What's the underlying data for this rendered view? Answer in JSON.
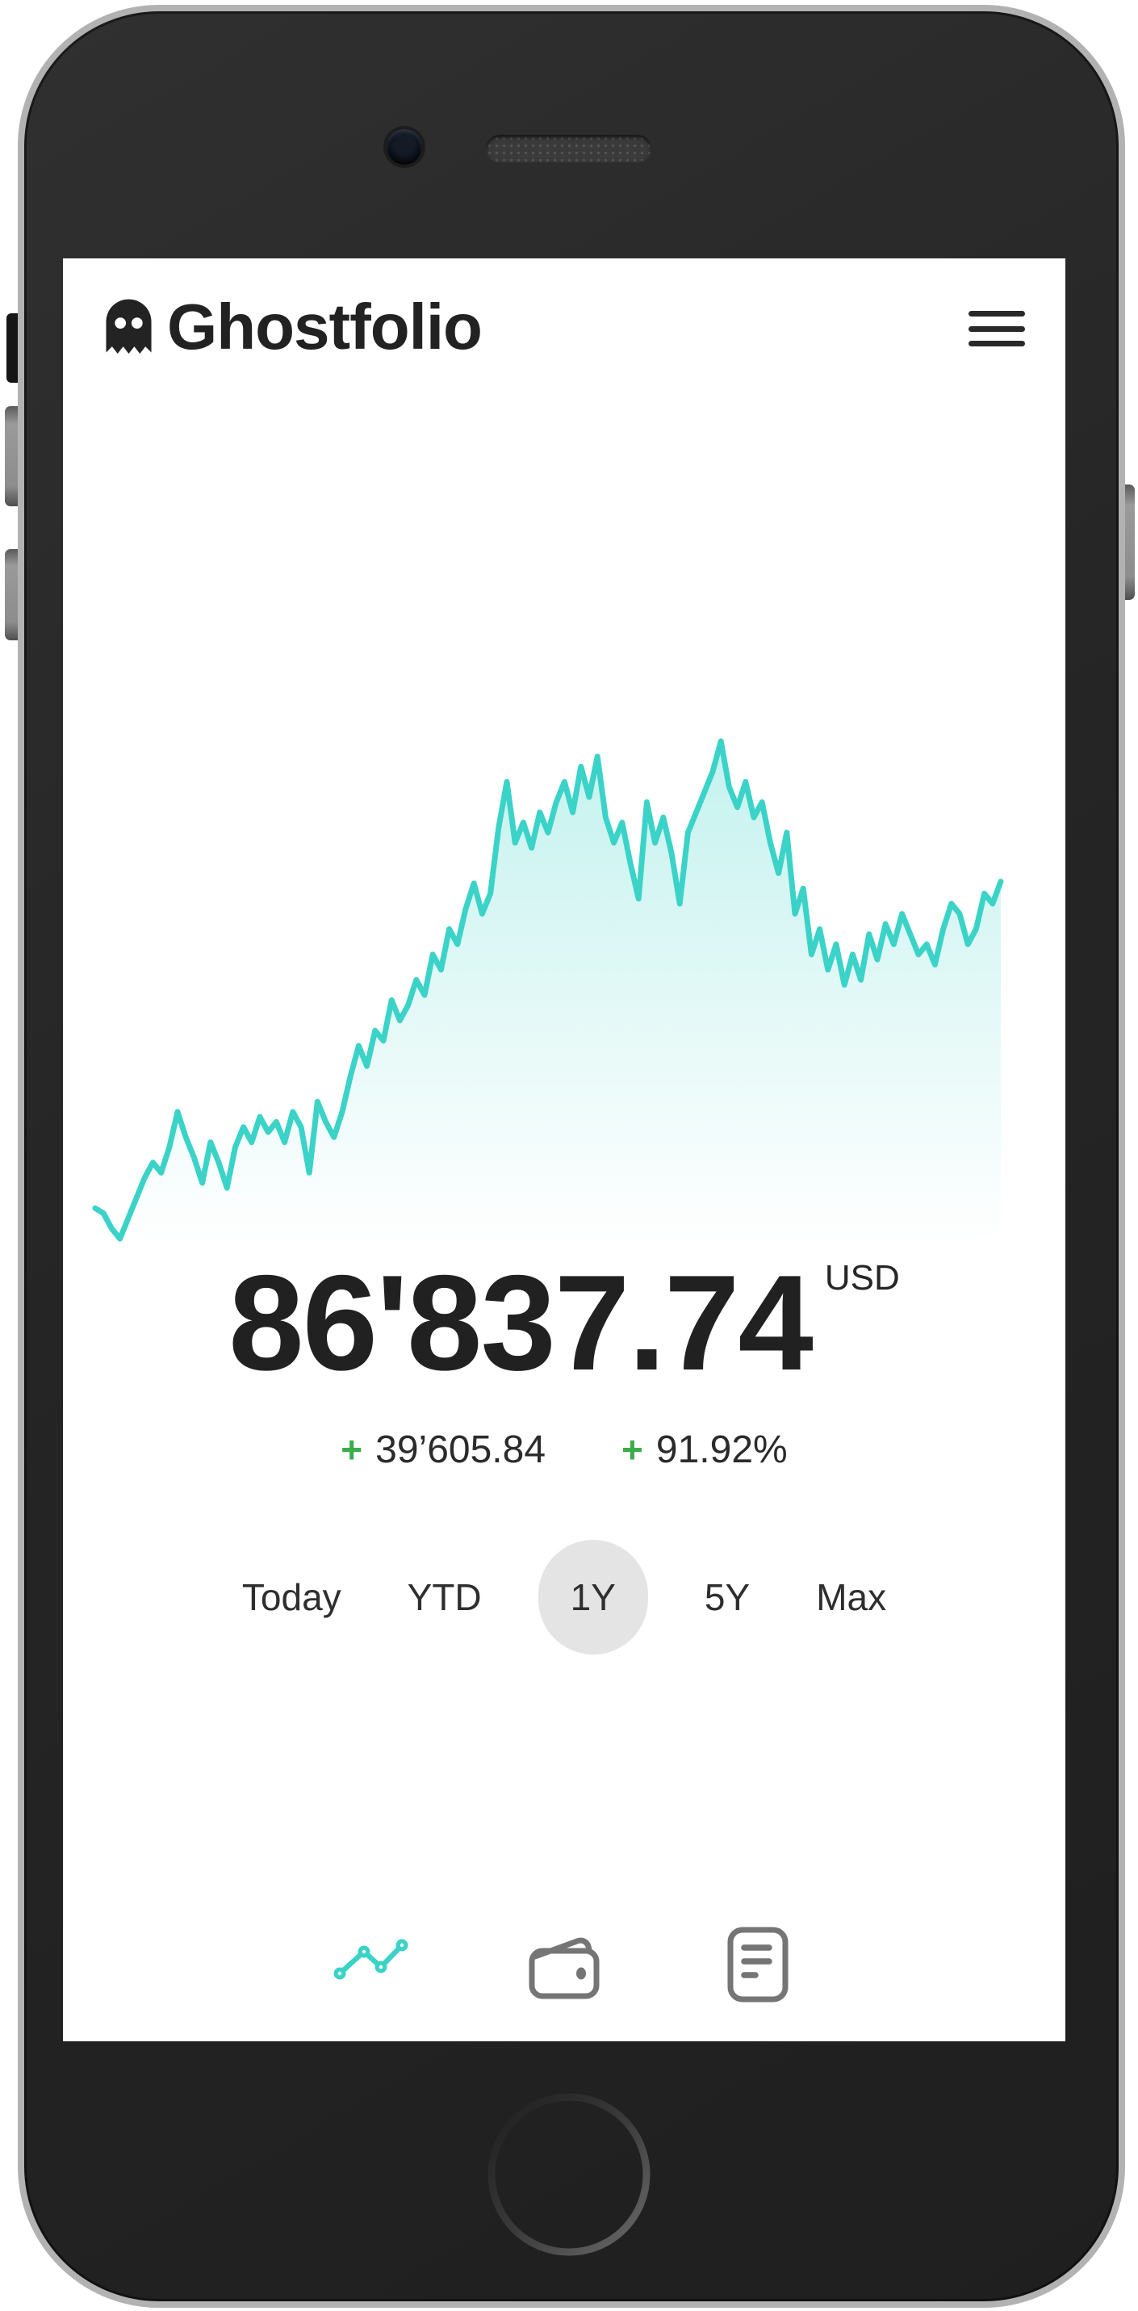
{
  "app": {
    "title": "Ghostfolio"
  },
  "header": {
    "logo_icon": "ghost-icon",
    "menu_icon": "hamburger-icon"
  },
  "portfolio": {
    "value": "86'837.74",
    "currency": "USD",
    "change": {
      "sign": "+",
      "absolute": "39’605.84",
      "percent": "91.92%"
    }
  },
  "ranges": {
    "options": [
      "Today",
      "YTD",
      "1Y",
      "5Y",
      "Max"
    ],
    "selected": "1Y"
  },
  "tabbar": {
    "items": [
      {
        "name": "performance",
        "icon": "line-chart-icon",
        "active": true
      },
      {
        "name": "wallet",
        "icon": "wallet-icon",
        "active": false
      },
      {
        "name": "report",
        "icon": "document-icon",
        "active": false
      }
    ]
  },
  "colors": {
    "accent": "#3BD3C8",
    "positive": "#3AAD4A",
    "text": "#232323",
    "muted_icon": "#757575",
    "pill_bg": "#E4E4E4",
    "bezel": "#262626",
    "rim": "#B2B2B2"
  },
  "chart_data": {
    "type": "area",
    "title": "",
    "period": "1Y",
    "unit": "USD",
    "x_axis_visible": false,
    "y_axis_visible": false,
    "grid": false,
    "legend": false,
    "ylim": [
      44000,
      104000
    ],
    "line_color": "#3BD3C8",
    "fill": "vertical gradient of line color fading to transparent at bottom",
    "values": [
      49180,
      48595,
      46840,
      45670,
      48010,
      50350,
      52690,
      54445,
      53275,
      56200,
      60295,
      57370,
      55030,
      52105,
      56785,
      54445,
      51520,
      56200,
      58540,
      56785,
      59710,
      57955,
      59125,
      56785,
      60295,
      58540,
      53275,
      61465,
      59125,
      57370,
      60295,
      64390,
      67900,
      65560,
      69655,
      68485,
      73165,
      70825,
      72580,
      75505,
      73750,
      78430,
      76675,
      81355,
      79600,
      83695,
      86620,
      83110,
      85450,
      93055,
      98320,
      91300,
      93640,
      90715,
      94810,
      92470,
      95980,
      98320,
      94810,
      100075,
      96565,
      101245,
      94225,
      91300,
      93640,
      88960,
      84865,
      95980,
      91300,
      94225,
      90130,
      84280,
      92470,
      94810,
      97150,
      99490,
      103000,
      97735,
      95395,
      98320,
      94225,
      95980,
      91300,
      87790,
      92470,
      83110,
      86035,
      78430,
      81355,
      76675,
      79600,
      74920,
      78430,
      75505,
      80770,
      77845,
      81940,
      79600,
      83110,
      80770,
      78430,
      79600,
      77260,
      81355,
      84280,
      83110,
      79600,
      81355,
      85450,
      84280,
      86838
    ]
  }
}
